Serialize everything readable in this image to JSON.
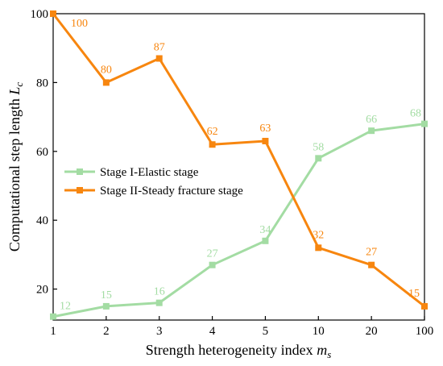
{
  "chart_data": {
    "type": "line",
    "categories": [
      "1",
      "2",
      "3",
      "4",
      "5",
      "10",
      "20",
      "100"
    ],
    "series": [
      {
        "name": "Stage I-Elastic stage",
        "color": "#a3dca3",
        "values": [
          12,
          15,
          16,
          27,
          34,
          58,
          66,
          68
        ],
        "labels": [
          "12",
          "15",
          "16",
          "27",
          "34",
          "58",
          "66",
          "68"
        ]
      },
      {
        "name": "Stage II-Steady fracture stage",
        "color": "#f7860f",
        "values": [
          100,
          80,
          87,
          62,
          63,
          32,
          27,
          15
        ],
        "labels": [
          "100",
          "80",
          "87",
          "62",
          "63",
          "32",
          "27",
          "15"
        ]
      }
    ],
    "xlabel": "Strength heterogeneity index",
    "xlabel_sub": "s",
    "xlabel_var": "m",
    "ylabel": "Computational step length",
    "ylabel_var": "L",
    "ylabel_sub": "c",
    "ylim": [
      11,
      100
    ],
    "yticks": [
      "20",
      "40",
      "60",
      "80",
      "100"
    ],
    "ytick_values": [
      20,
      40,
      60,
      80,
      100
    ],
    "legend_position": "center-left",
    "grid": false
  }
}
